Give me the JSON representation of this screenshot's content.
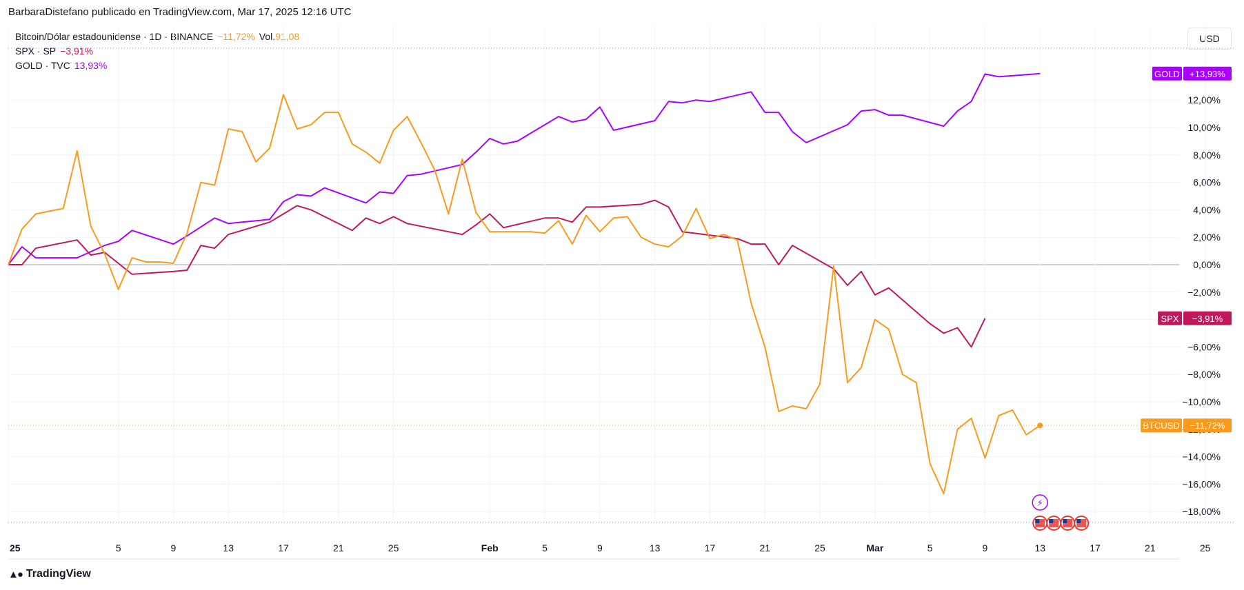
{
  "header": {
    "publisher": "BarbaraDistefano publicado en TradingView.com, Mar 17, 2025 12:16 UTC",
    "currency": "USD",
    "brand": "TradingView"
  },
  "legend": [
    {
      "id": "btc",
      "parts": [
        "Bitcoin/Dólar estadounidense · 1D · BINANCE",
        "−11,72%",
        "Vol.",
        "91,08"
      ]
    },
    {
      "id": "spx",
      "parts": [
        "SPX · SP",
        "−3,91%"
      ]
    },
    {
      "id": "gold",
      "parts": [
        "GOLD · TVC",
        "13,93%"
      ]
    }
  ],
  "colors": {
    "btc": "#f89a1d",
    "spx": "#c2185b",
    "gold": "#aa00ff",
    "grid": "#f0f3fa",
    "zero": "#b2b5be",
    "axis_text": "#131722"
  },
  "chart_data": {
    "type": "line",
    "xlabel": "",
    "ylabel": "",
    "ylim": [
      -19.5,
      18
    ],
    "grid": true,
    "x_ticks": [
      "25",
      "5",
      "9",
      "13",
      "17",
      "21",
      "25",
      "Feb",
      "5",
      "9",
      "13",
      "17",
      "21",
      "25",
      "Mar",
      "5",
      "9",
      "13",
      "17",
      "21",
      "25"
    ],
    "x_tick_days": [
      0,
      8,
      12,
      16,
      20,
      24,
      28,
      35,
      39,
      43,
      47,
      51,
      55,
      59,
      63,
      67,
      71,
      75,
      79,
      83,
      87
    ],
    "y_ticks": [
      12,
      10,
      8,
      6,
      4,
      2,
      0,
      -2,
      -4,
      -6,
      -8,
      -10,
      -12,
      -14,
      -16,
      -18
    ],
    "y_tick_labels": [
      "12,00%",
      "10,00%",
      "8,00%",
      "6,00%",
      "4,00%",
      "2,00%",
      "0,00%",
      "−2,00%",
      "−4,00%",
      "−6,00%",
      "−8,00%",
      "−10,00%",
      "−12,00%",
      "−14,00%",
      "−16,00%",
      "−18,00%"
    ],
    "series": [
      {
        "id": "gold",
        "name": "GOLD",
        "end_label": "+13,93%",
        "points": [
          [
            0,
            0
          ],
          [
            1,
            1.3
          ],
          [
            2,
            0.5
          ],
          [
            5,
            0.5
          ],
          [
            7,
            1.4
          ],
          [
            8,
            1.7
          ],
          [
            9,
            2.5
          ],
          [
            12,
            1.5
          ],
          [
            13,
            2.1
          ],
          [
            15,
            3.4
          ],
          [
            16,
            3
          ],
          [
            19,
            3.3
          ],
          [
            20,
            4.6
          ],
          [
            21,
            5.1
          ],
          [
            22,
            5
          ],
          [
            23,
            5.6
          ],
          [
            26,
            4.5
          ],
          [
            27,
            5.3
          ],
          [
            28,
            5.2
          ],
          [
            29,
            6.5
          ],
          [
            30,
            6.6
          ],
          [
            33,
            7.3
          ],
          [
            34,
            8.2
          ],
          [
            35,
            9.2
          ],
          [
            36,
            8.8
          ],
          [
            37,
            9
          ],
          [
            40,
            10.8
          ],
          [
            41,
            10.4
          ],
          [
            42,
            10.6
          ],
          [
            43,
            11.5
          ],
          [
            44,
            9.8
          ],
          [
            47,
            10.5
          ],
          [
            48,
            11.9
          ],
          [
            49,
            11.8
          ],
          [
            50,
            12
          ],
          [
            51,
            11.9
          ],
          [
            54,
            12.6
          ],
          [
            55,
            11.1
          ],
          [
            56,
            11.1
          ],
          [
            57,
            9.7
          ],
          [
            58,
            8.9
          ],
          [
            61,
            10.2
          ],
          [
            62,
            11.2
          ],
          [
            63,
            11.3
          ],
          [
            64,
            10.9
          ],
          [
            65,
            10.9
          ],
          [
            68,
            10.1
          ],
          [
            69,
            11.2
          ],
          [
            70,
            11.9
          ],
          [
            71,
            13.9
          ],
          [
            72,
            13.7
          ],
          [
            75,
            13.93
          ]
        ]
      },
      {
        "id": "spx",
        "name": "SPX",
        "end_label": "−3,91%",
        "points": [
          [
            0,
            0
          ],
          [
            1,
            0
          ],
          [
            2,
            1.2
          ],
          [
            5,
            1.8
          ],
          [
            6,
            0.7
          ],
          [
            7,
            0.9
          ],
          [
            9,
            -0.7
          ],
          [
            12,
            -0.5
          ],
          [
            13,
            -0.4
          ],
          [
            14,
            1.4
          ],
          [
            15,
            1.2
          ],
          [
            16,
            2.2
          ],
          [
            19,
            3.1
          ],
          [
            20,
            3.7
          ],
          [
            21,
            4.3
          ],
          [
            22,
            4
          ],
          [
            25,
            2.5
          ],
          [
            26,
            3.4
          ],
          [
            27,
            3
          ],
          [
            28,
            3.5
          ],
          [
            29,
            3
          ],
          [
            33,
            2.2
          ],
          [
            34,
            2.9
          ],
          [
            35,
            3.7
          ],
          [
            36,
            2.7
          ],
          [
            39,
            3.4
          ],
          [
            40,
            3.4
          ],
          [
            41,
            3.1
          ],
          [
            42,
            4.2
          ],
          [
            43,
            4.2
          ],
          [
            46,
            4.4
          ],
          [
            47,
            4.7
          ],
          [
            48,
            4.2
          ],
          [
            49,
            2.4
          ],
          [
            53,
            1.9
          ],
          [
            54,
            1.5
          ],
          [
            55,
            1.5
          ],
          [
            56,
            0
          ],
          [
            57,
            1.4
          ],
          [
            60,
            -0.3
          ],
          [
            61,
            -1.5
          ],
          [
            62,
            -0.5
          ],
          [
            63,
            -2.2
          ],
          [
            64,
            -1.7
          ],
          [
            67,
            -4.3
          ],
          [
            68,
            -5
          ],
          [
            69,
            -4.6
          ],
          [
            70,
            -6
          ],
          [
            71,
            -3.91
          ]
        ]
      },
      {
        "id": "btc",
        "name": "BTCUSD",
        "end_label": "−11,72%",
        "points": [
          [
            0,
            0
          ],
          [
            1,
            2.6
          ],
          [
            2,
            3.7
          ],
          [
            4,
            4.1
          ],
          [
            5,
            8.3
          ],
          [
            6,
            2.8
          ],
          [
            7,
            0.8
          ],
          [
            8,
            -1.8
          ],
          [
            9,
            0.5
          ],
          [
            10,
            0.2
          ],
          [
            11,
            0.2
          ],
          [
            12,
            0.1
          ],
          [
            13,
            2.3
          ],
          [
            14,
            6
          ],
          [
            15,
            5.8
          ],
          [
            16,
            9.9
          ],
          [
            17,
            9.7
          ],
          [
            18,
            7.5
          ],
          [
            19,
            8.5
          ],
          [
            20,
            12.4
          ],
          [
            21,
            9.9
          ],
          [
            22,
            10.2
          ],
          [
            23,
            11.1
          ],
          [
            24,
            11.1
          ],
          [
            25,
            8.8
          ],
          [
            26,
            8.2
          ],
          [
            27,
            7.4
          ],
          [
            28,
            9.8
          ],
          [
            29,
            10.8
          ],
          [
            30,
            8.9
          ],
          [
            31,
            6.9
          ],
          [
            32,
            3.7
          ],
          [
            33,
            7.7
          ],
          [
            34,
            3.8
          ],
          [
            35,
            2.4
          ],
          [
            36,
            2.4
          ],
          [
            37,
            2.4
          ],
          [
            38,
            2.4
          ],
          [
            39,
            2.3
          ],
          [
            40,
            3.2
          ],
          [
            41,
            1.5
          ],
          [
            42,
            3.6
          ],
          [
            43,
            2.4
          ],
          [
            44,
            3.4
          ],
          [
            45,
            3.5
          ],
          [
            46,
            2
          ],
          [
            47,
            1.5
          ],
          [
            48,
            1.3
          ],
          [
            49,
            2.1
          ],
          [
            50,
            4.1
          ],
          [
            51,
            1.9
          ],
          [
            52,
            2.2
          ],
          [
            53,
            1.8
          ],
          [
            54,
            -2.8
          ],
          [
            55,
            -6
          ],
          [
            56,
            -10.7
          ],
          [
            57,
            -10.3
          ],
          [
            58,
            -10.5
          ],
          [
            59,
            -8.7
          ],
          [
            60,
            -0.1
          ],
          [
            61,
            -8.6
          ],
          [
            62,
            -7.5
          ],
          [
            63,
            -4
          ],
          [
            64,
            -4.7
          ],
          [
            65,
            -8
          ],
          [
            66,
            -8.6
          ],
          [
            67,
            -14.5
          ],
          [
            68,
            -16.7
          ],
          [
            69,
            -12
          ],
          [
            70,
            -11.2
          ],
          [
            71,
            -14.1
          ],
          [
            72,
            -11
          ],
          [
            73,
            -10.6
          ],
          [
            74,
            -12.4
          ],
          [
            75,
            -11.72
          ]
        ]
      }
    ]
  }
}
